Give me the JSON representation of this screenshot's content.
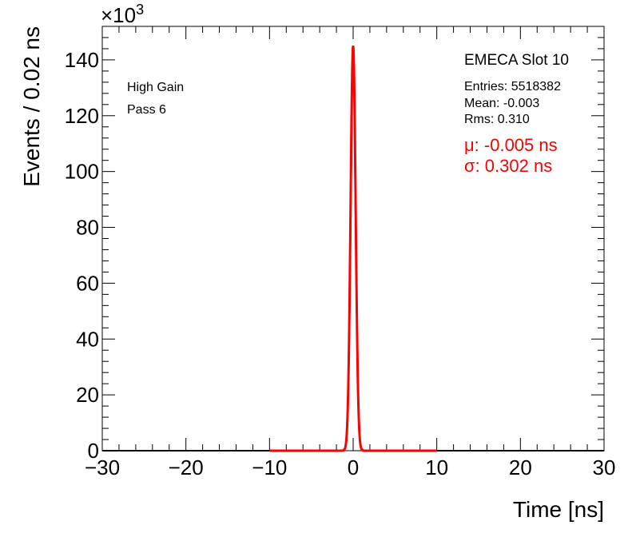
{
  "chart_data": {
    "type": "line",
    "xlabel": "Time [ns]",
    "ylabel": "Events / 0.02 ns",
    "xlim": [
      -30,
      30
    ],
    "ylim": [
      0,
      152
    ],
    "y_scale_factor": "×10",
    "y_scale_exponent": "3",
    "x_ticks": [
      -30,
      -20,
      -10,
      0,
      10,
      20,
      30
    ],
    "x_tick_labels": [
      "−30",
      "−20",
      "−10",
      "0",
      "10",
      "20",
      "30"
    ],
    "y_ticks": [
      0,
      20,
      40,
      60,
      80,
      100,
      120,
      140
    ],
    "y_tick_labels": [
      "0",
      "20",
      "40",
      "60",
      "80",
      "100",
      "120",
      "140"
    ],
    "grid": false,
    "annotations": {
      "gain": "High Gain",
      "pass": "Pass 6"
    },
    "stats": {
      "title": "EMECA Slot 10",
      "entries": "Entries: 5518382",
      "mean": "Mean: -0.003",
      "rms": "Rms: 0.310"
    },
    "fit_results": {
      "mu": "μ: -0.005 ns",
      "sigma": "σ: 0.302 ns"
    },
    "series": [
      {
        "type": "histogram",
        "color": "#000000",
        "x": [
          -1.2,
          -1.0,
          -0.8,
          -0.7,
          -0.6,
          -0.5,
          -0.4,
          -0.3,
          -0.2,
          -0.15,
          -0.1,
          -0.05,
          0.0,
          0.05,
          0.1,
          0.15,
          0.2,
          0.3,
          0.4,
          0.5,
          0.6,
          0.7,
          0.8,
          1.0,
          1.2
        ],
        "y": [
          0.2,
          0.7,
          3,
          8,
          18,
          33,
          55,
          82,
          108,
          123,
          135,
          143,
          145,
          144,
          137,
          124,
          108,
          80,
          54,
          32,
          17,
          8,
          3,
          0.8,
          0.2
        ]
      },
      {
        "type": "fit",
        "color": "#ff0000",
        "xrange": [
          -10,
          10
        ],
        "mean": -0.005,
        "sigma": 0.302,
        "peak": 145
      }
    ]
  }
}
